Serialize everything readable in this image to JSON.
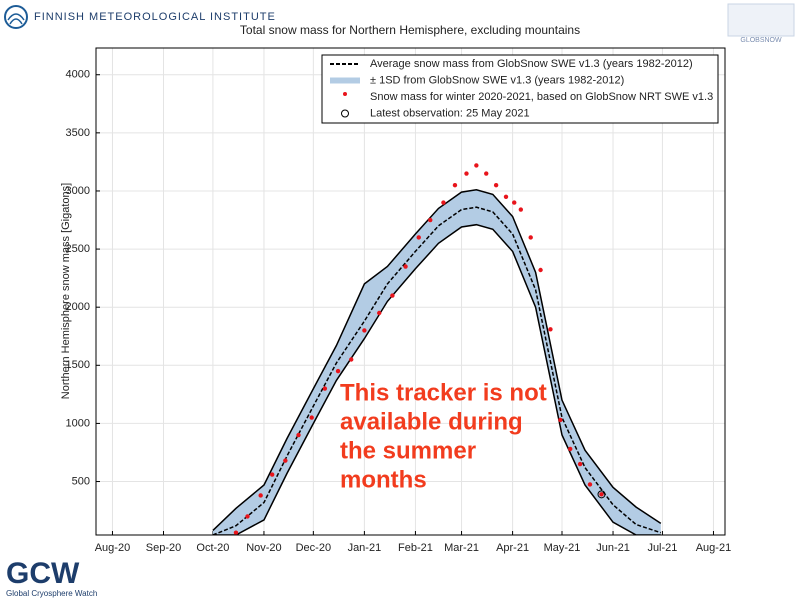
{
  "header": {
    "institute": "FINNISH METEOROLOGICAL INSTITUTE",
    "globsnow": "GLOBSNOW",
    "gcw": "GCW",
    "gcw_sub": "Global Cryosphere Watch"
  },
  "chart_data": {
    "type": "line",
    "title": "Total snow mass for Northern Hemisphere, excluding mountains",
    "ylabel": "Northern Hemisphere snow mass [Gigatons]",
    "xlim": [
      "2020-07-22",
      "2021-08-08"
    ],
    "xticks": [
      {
        "value": "2020-08-01",
        "label": "Aug-20"
      },
      {
        "value": "2020-09-01",
        "label": "Sep-20"
      },
      {
        "value": "2020-10-01",
        "label": "Oct-20"
      },
      {
        "value": "2020-11-01",
        "label": "Nov-20"
      },
      {
        "value": "2020-12-01",
        "label": "Dec-20"
      },
      {
        "value": "2021-01-01",
        "label": "Jan-21"
      },
      {
        "value": "2021-02-01",
        "label": "Feb-21"
      },
      {
        "value": "2021-03-01",
        "label": "Mar-21"
      },
      {
        "value": "2021-04-01",
        "label": "Apr-21"
      },
      {
        "value": "2021-05-01",
        "label": "May-21"
      },
      {
        "value": "2021-06-01",
        "label": "Jun-21"
      },
      {
        "value": "2021-07-01",
        "label": "Jul-21"
      },
      {
        "value": "2021-08-01",
        "label": "Aug-21"
      }
    ],
    "ylim": [
      40,
      4230
    ],
    "yticks": [
      500,
      1000,
      1500,
      2000,
      2500,
      3000,
      3500,
      4000
    ],
    "grid": true,
    "legend": "upper right",
    "mean": {
      "name": "Average snow mass from GlobSnow SWE v1.3 (years 1982-2012)",
      "color": "#000000",
      "x": [
        "2020-10-01",
        "2020-10-15",
        "2020-11-01",
        "2020-11-15",
        "2020-12-01",
        "2020-12-15",
        "2021-01-01",
        "2021-01-15",
        "2021-02-01",
        "2021-02-15",
        "2021-03-01",
        "2021-03-10",
        "2021-03-20",
        "2021-04-01",
        "2021-04-15",
        "2021-05-01",
        "2021-05-15",
        "2021-06-01",
        "2021-06-15",
        "2021-06-30"
      ],
      "values": [
        40,
        120,
        320,
        720,
        1150,
        1520,
        1880,
        2200,
        2480,
        2700,
        2840,
        2860,
        2820,
        2630,
        2150,
        1050,
        620,
        300,
        130,
        60
      ]
    },
    "band": {
      "name": "± 1SD from GlobSnow SWE v1.3 (years 1982-2012)",
      "color": "#b3cce4",
      "lower": [
        40,
        40,
        170,
        570,
        1000,
        1370,
        1730,
        2050,
        2330,
        2550,
        2690,
        2710,
        2670,
        2480,
        2000,
        900,
        470,
        150,
        40,
        40
      ],
      "upper": [
        80,
        270,
        470,
        870,
        1300,
        1670,
        2200,
        2350,
        2630,
        2850,
        2990,
        3010,
        2970,
        2780,
        2300,
        1200,
        770,
        450,
        280,
        140
      ]
    },
    "observed": {
      "name": "Snow mass for winter 2020-2021, based on GlobSnow NRT SWE v1.3",
      "color": "#e8141b",
      "x": [
        "2020-10-15",
        "2020-10-22",
        "2020-10-30",
        "2020-11-06",
        "2020-11-14",
        "2020-11-22",
        "2020-11-30",
        "2020-12-08",
        "2020-12-16",
        "2020-12-24",
        "2021-01-01",
        "2021-01-10",
        "2021-01-18",
        "2021-01-26",
        "2021-02-03",
        "2021-02-10",
        "2021-02-18",
        "2021-02-25",
        "2021-03-04",
        "2021-03-10",
        "2021-03-16",
        "2021-03-22",
        "2021-03-28",
        "2021-04-02",
        "2021-04-06",
        "2021-04-12",
        "2021-04-18",
        "2021-04-24",
        "2021-04-30",
        "2021-05-06",
        "2021-05-12",
        "2021-05-18",
        "2021-05-25"
      ],
      "values": [
        60,
        200,
        380,
        560,
        680,
        900,
        1050,
        1300,
        1450,
        1550,
        1800,
        1950,
        2100,
        2350,
        2600,
        2750,
        2900,
        3050,
        3150,
        3220,
        3150,
        3050,
        2950,
        2900,
        2840,
        2600,
        2320,
        1810,
        1030,
        780,
        650,
        475,
        390
      ]
    },
    "latest": {
      "name": "Latest observation: 25 May 2021",
      "x": "2021-05-25",
      "value": 390
    },
    "annotation": [
      "This tracker is not",
      "available during",
      "the summer",
      "months"
    ],
    "annotation_color": "#f23c1e"
  }
}
